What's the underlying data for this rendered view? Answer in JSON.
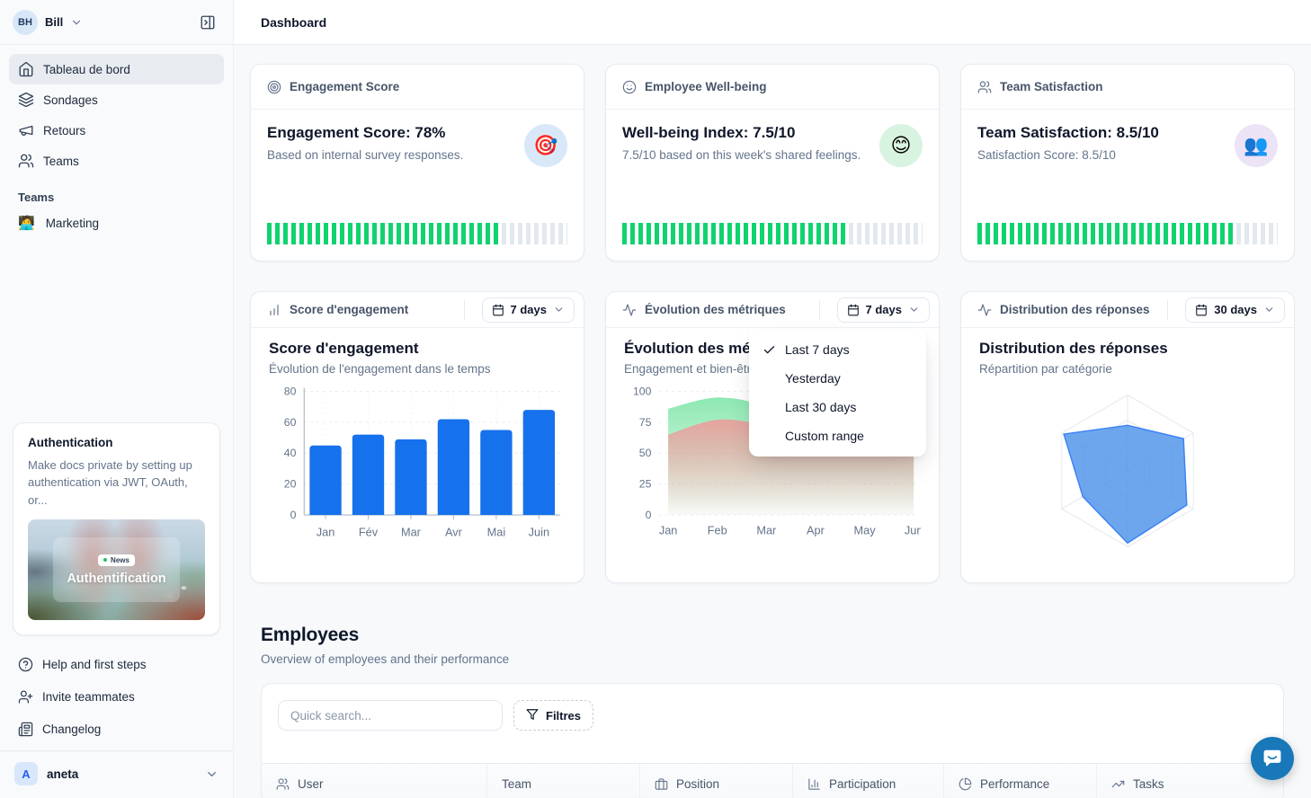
{
  "colors": {
    "progress_green": "#0fd36e",
    "progress_track": "#e3e8ee",
    "bar_blue": "#1671ec",
    "area_green": "#86e7ac",
    "area_pink": "#ef9a9a",
    "radar_blue": "#4a90e8",
    "chat_blue": "#1878b9"
  },
  "sidebar": {
    "user": {
      "initials": "BH",
      "name": "Bill"
    },
    "nav": [
      {
        "icon": "home",
        "label": "Tableau de bord",
        "active": true
      },
      {
        "icon": "layers",
        "label": "Sondages",
        "active": false
      },
      {
        "icon": "megaphone",
        "label": "Retours",
        "active": false
      },
      {
        "icon": "users",
        "label": "Teams",
        "active": false
      }
    ],
    "section_label": "Teams",
    "teams": [
      {
        "emoji": "🧑‍💻",
        "label": "Marketing"
      }
    ],
    "promo": {
      "title": "Authentication",
      "description": "Make docs private by setting up authentication via JWT, OAuth, or...",
      "badge": "News",
      "image_title": "Authentification"
    },
    "footer": [
      {
        "icon": "help-circle",
        "label": "Help and first steps"
      },
      {
        "icon": "user-plus",
        "label": "Invite teammates"
      },
      {
        "icon": "newspaper",
        "label": "Changelog"
      }
    ],
    "workspace": {
      "initial": "A",
      "name": "aneta"
    }
  },
  "topbar": {
    "title": "Dashboard"
  },
  "stat_cards": [
    {
      "header": "Engagement Score",
      "icon": "target",
      "title": "Engagement Score: 78%",
      "subtitle": "Based on internal survey responses.",
      "emoji": "🎯",
      "emoji_bg": "#d8e8f8",
      "progress_pct": 78
    },
    {
      "header": "Employee Well-being",
      "icon": "smile",
      "title": "Well-being Index: 7.5/10",
      "subtitle": "7.5/10 based on this week's shared feelings.",
      "emoji": "😊",
      "emoji_bg": "#d9f3e1",
      "progress_pct": 75
    },
    {
      "header": "Team Satisfaction",
      "icon": "users",
      "title": "Team Satisfaction: 8.5/10",
      "subtitle": "Satisfaction Score: 8.5/10",
      "emoji": "👥",
      "emoji_bg": "#ece3f6",
      "progress_pct": 85
    }
  ],
  "chart_cards": [
    {
      "header": "Score d'engagement",
      "icon": "bar-chart",
      "range": "7 days",
      "heading": "Score d'engagement",
      "subheading": "Évolution de l'engagement dans le temps"
    },
    {
      "header": "Évolution des métriques",
      "icon": "activity",
      "range": "7 days",
      "heading": "Évolution des métriques",
      "subheading": "Engagement et bien-être"
    },
    {
      "header": "Distribution des réponses",
      "icon": "activity",
      "range": "30 days",
      "heading": "Distribution des réponses",
      "subheading": "Répartition par catégorie"
    }
  ],
  "dropdown": {
    "items": [
      {
        "label": "Last 7 days",
        "checked": true
      },
      {
        "label": "Yesterday",
        "checked": false
      },
      {
        "label": "Last 30 days",
        "checked": false
      },
      {
        "label": "Custom range",
        "checked": false
      }
    ]
  },
  "chart_data": [
    {
      "type": "bar",
      "title": "Score d'engagement",
      "categories": [
        "Jan",
        "Fév",
        "Mar",
        "Avr",
        "Mai",
        "Juin"
      ],
      "values": [
        45,
        52,
        49,
        62,
        55,
        68
      ],
      "ylim": [
        0,
        80
      ],
      "yticks": [
        0,
        20,
        40,
        60,
        80
      ],
      "grid": true,
      "bar_color": "#1671ec"
    },
    {
      "type": "area",
      "title": "Évolution des métriques",
      "x": [
        "Jan",
        "Feb",
        "Mar",
        "Apr",
        "May",
        "Jun"
      ],
      "series": [
        {
          "name": "engagement",
          "color": "#86e7ac",
          "values": [
            86,
            95,
            88,
            70,
            74,
            80
          ]
        },
        {
          "name": "bien-être",
          "color": "#ef9a9a",
          "values": [
            65,
            77,
            72,
            59,
            66,
            62
          ]
        }
      ],
      "ylim": [
        0,
        100
      ],
      "yticks": [
        0,
        25,
        50,
        75,
        100
      ],
      "grid": true
    },
    {
      "type": "radar",
      "title": "Distribution des réponses",
      "axes_count": 6,
      "values": [
        0.6,
        0.85,
        0.9,
        0.95,
        0.68,
        0.97
      ],
      "max": 1,
      "rings": 3,
      "color": "#4a90e8"
    }
  ],
  "employees": {
    "title": "Employees",
    "subtitle": "Overview of employees and their performance",
    "search_placeholder": "Quick search...",
    "filter_label": "Filtres",
    "columns": [
      {
        "icon": "users",
        "label": "User"
      },
      {
        "icon": "",
        "label": "Team"
      },
      {
        "icon": "briefcase",
        "label": "Position"
      },
      {
        "icon": "chart-col",
        "label": "Participation"
      },
      {
        "icon": "pie-chart",
        "label": "Performance"
      },
      {
        "icon": "trending-up",
        "label": "Tasks"
      }
    ]
  }
}
